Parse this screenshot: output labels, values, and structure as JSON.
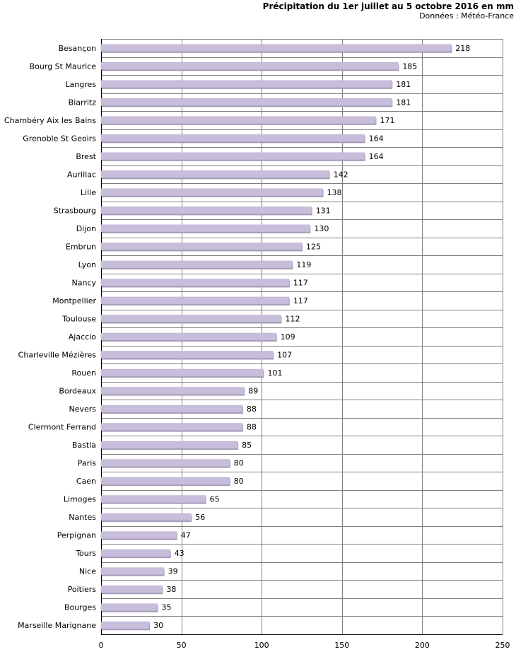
{
  "header": {
    "title": "Précipitation du 1er juillet au 5 octobre 2016 en mm",
    "subtitle": "Données : Météo-France"
  },
  "colors": {
    "bar": "#c8bedb",
    "bar_shadow": "#a49cb6",
    "grid": "#7f7f7f"
  },
  "chart_data": {
    "type": "bar",
    "orientation": "horizontal",
    "title": "Précipitation du 1er juillet au 5 octobre 2016 en mm",
    "subtitle": "Données : Météo-France",
    "xlabel": "",
    "ylabel": "",
    "xlim": [
      0,
      250
    ],
    "ticks": [
      0,
      50,
      100,
      150,
      200,
      250
    ],
    "grid": true,
    "categories": [
      "Besançon",
      "Bourg St Maurice",
      "Langres",
      "Biarritz",
      "Chambéry Aix les Bains",
      "Grenoble St Geoirs",
      "Brest",
      "Aurillac",
      "Lille",
      "Strasbourg",
      "Dijon",
      "Embrun",
      "Lyon",
      "Nancy",
      "Montpellier",
      "Toulouse",
      "Ajaccio",
      "Charleville Mézières",
      "Rouen",
      "Bordeaux",
      "Nevers",
      "Clermont Ferrand",
      "Bastia",
      "Paris",
      "Caen",
      "Limoges",
      "Nantes",
      "Perpignan",
      "Tours",
      "Nice",
      "Poitiers",
      "Bourges",
      "Marseille Marignane"
    ],
    "values": [
      218,
      185,
      181,
      181,
      171,
      164,
      164,
      142,
      138,
      131,
      130,
      125,
      119,
      117,
      117,
      112,
      109,
      107,
      101,
      89,
      88,
      88,
      85,
      80,
      80,
      65,
      56,
      47,
      43,
      39,
      38,
      35,
      30
    ]
  }
}
